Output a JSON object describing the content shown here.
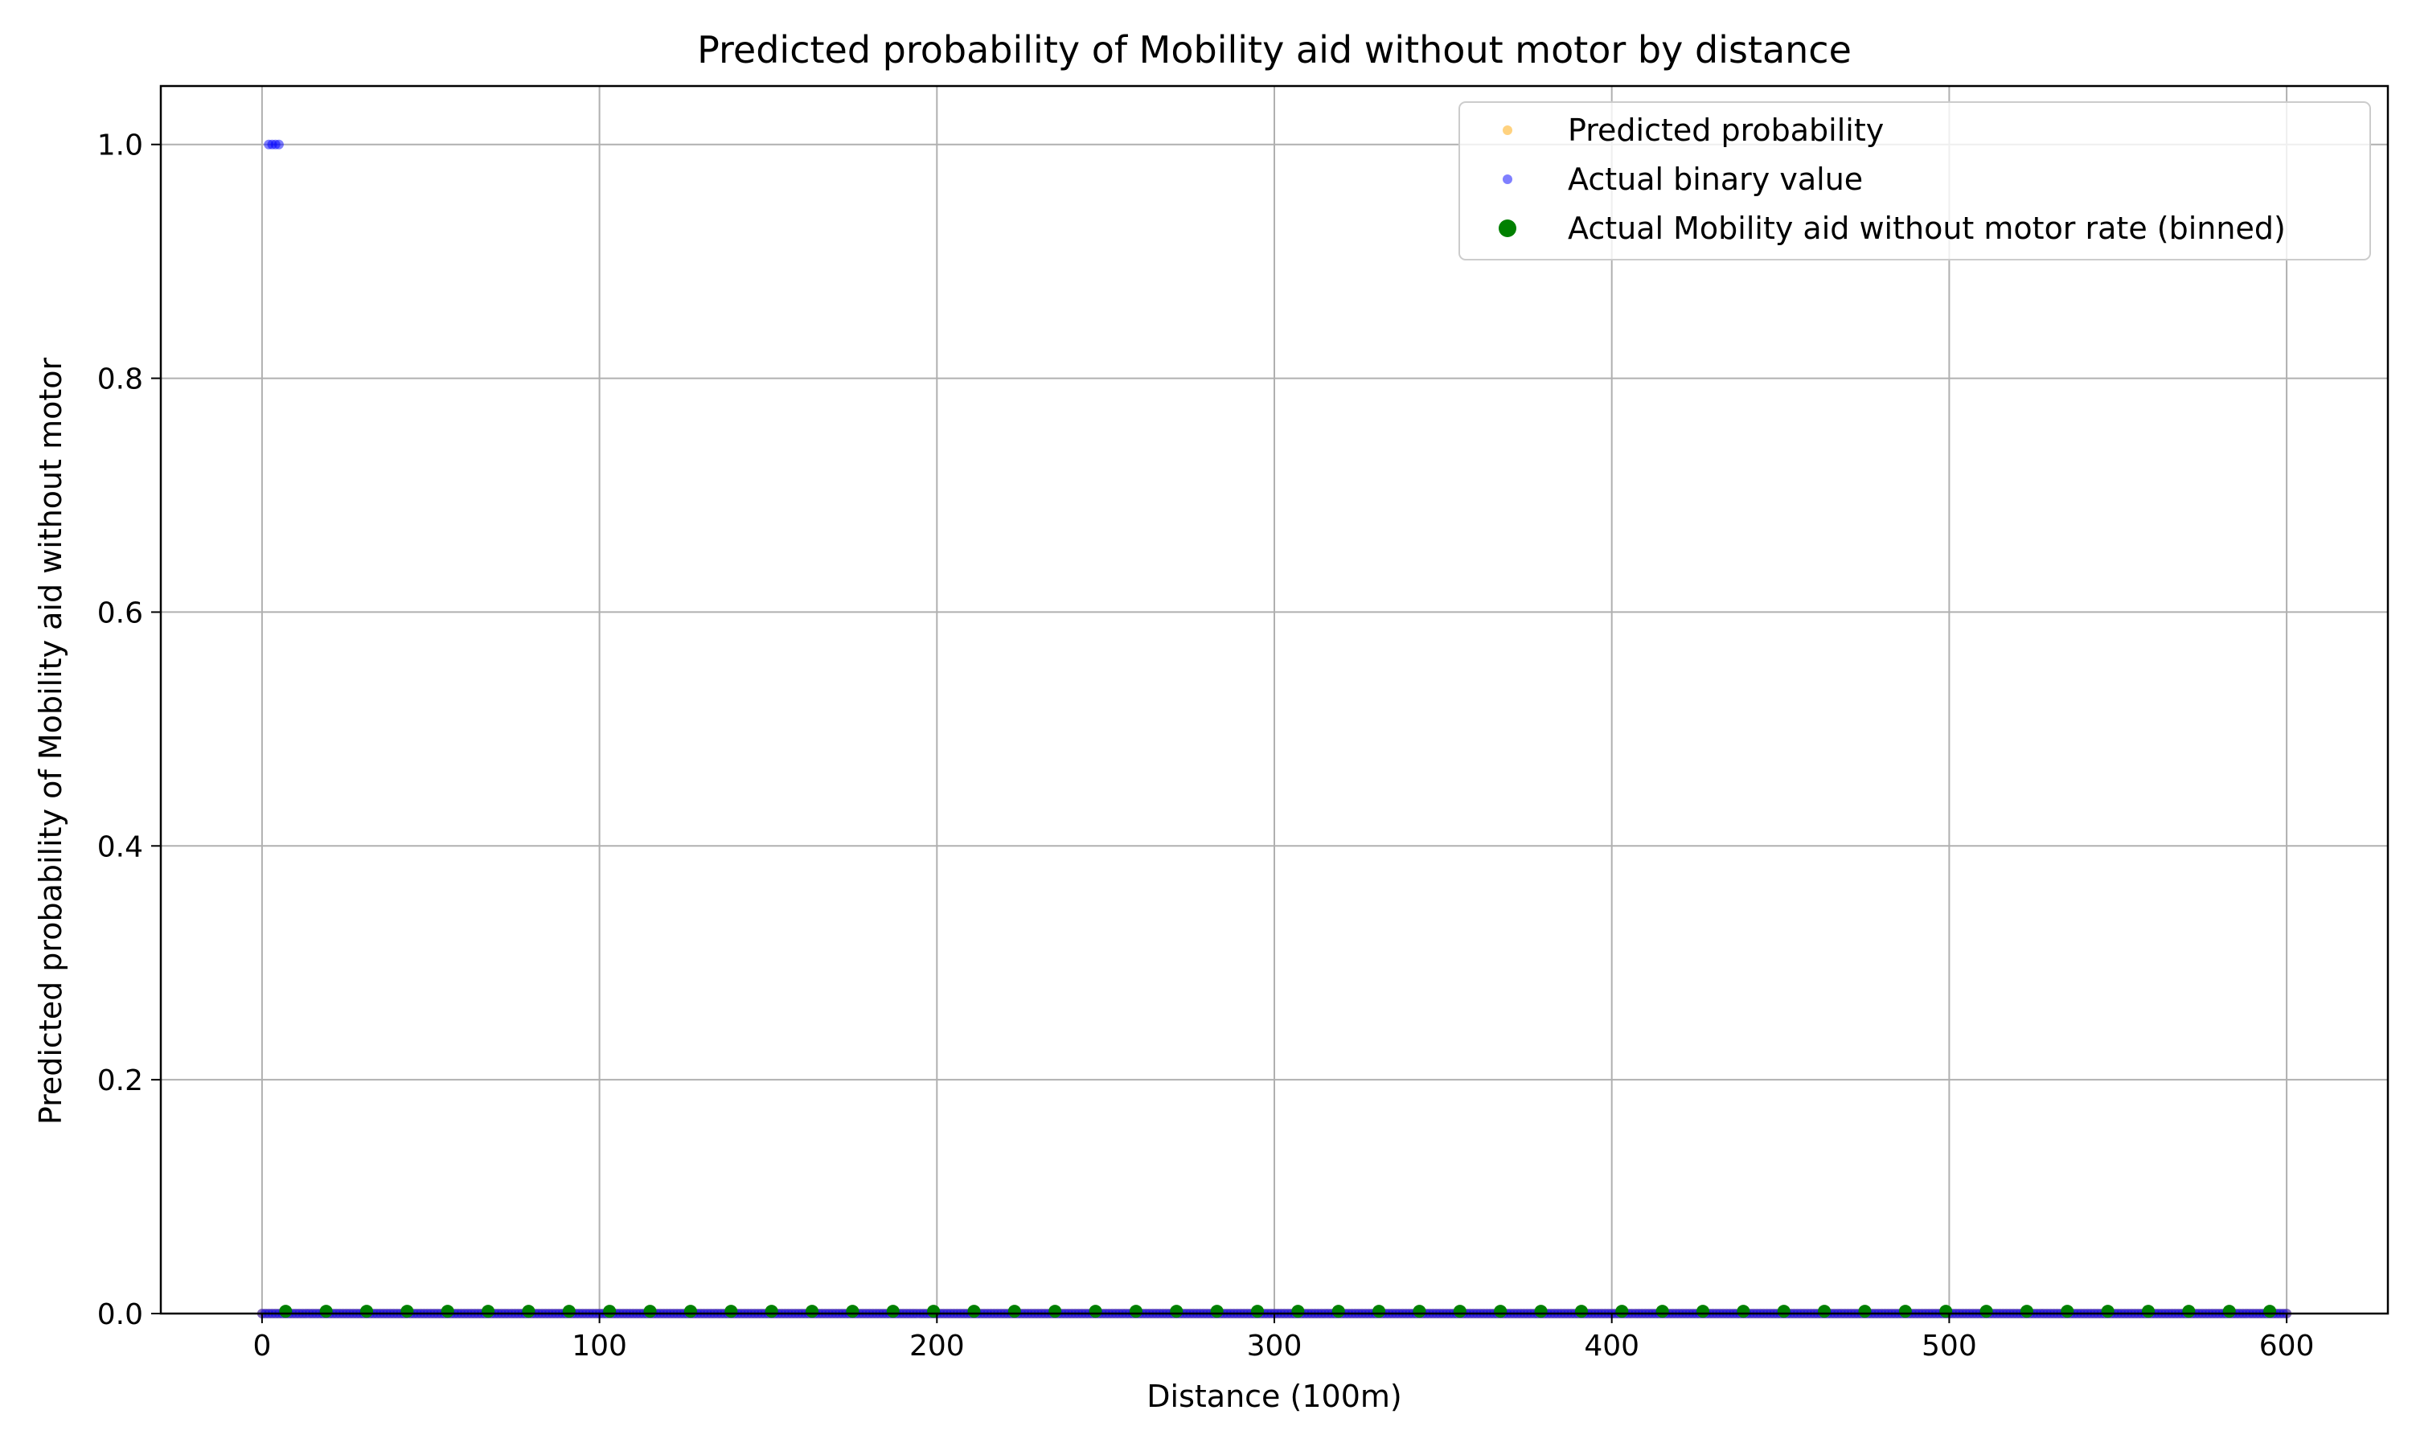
{
  "chart_data": {
    "type": "scatter",
    "title": "Predicted probability of Mobility aid without motor by distance",
    "xlabel": "Distance (100m)",
    "ylabel": "Predicted probability of Mobility aid without motor",
    "xlim": [
      -30,
      630
    ],
    "ylim": [
      0.0,
      1.05
    ],
    "xticks": [
      0,
      100,
      200,
      300,
      400,
      500,
      600
    ],
    "xtick_labels": [
      "0",
      "100",
      "200",
      "300",
      "400",
      "500",
      "600"
    ],
    "yticks": [
      0.0,
      0.2,
      0.4,
      0.6,
      0.8,
      1.0
    ],
    "ytick_labels": [
      "0.0",
      "0.2",
      "0.4",
      "0.6",
      "0.8",
      "1.0"
    ],
    "grid": true,
    "legend_position": "top-right",
    "series": [
      {
        "name": "Predicted probability",
        "color": "#ffa500",
        "marker": "small-circle",
        "x_range": [
          0,
          600
        ],
        "x_step": 1,
        "y": 0.0
      },
      {
        "name": "Actual binary value",
        "color": "#0000ff",
        "marker": "small-circle",
        "x_range": [
          0,
          600
        ],
        "x_step": 1,
        "y": 0.0,
        "extra_points": [
          {
            "x": 2,
            "y": 1.0
          },
          {
            "x": 3,
            "y": 1.0
          },
          {
            "x": 4,
            "y": 1.0
          },
          {
            "x": 5,
            "y": 1.0
          }
        ]
      },
      {
        "name": "Actual Mobility aid without motor rate (binned)",
        "color": "#008000",
        "marker": "circle",
        "x": [
          7,
          19,
          31,
          43,
          55,
          67,
          79,
          91,
          103,
          115,
          127,
          139,
          151,
          163,
          175,
          187,
          199,
          211,
          223,
          235,
          247,
          259,
          271,
          283,
          295,
          307,
          319,
          331,
          343,
          355,
          367,
          379,
          391,
          403,
          415,
          427,
          439,
          451,
          463,
          475,
          487,
          499,
          511,
          523,
          535,
          547,
          559,
          571,
          583,
          595
        ],
        "y": [
          0.002,
          0.002,
          0.002,
          0.002,
          0.002,
          0.002,
          0.002,
          0.002,
          0.002,
          0.002,
          0.002,
          0.002,
          0.002,
          0.002,
          0.002,
          0.002,
          0.002,
          0.002,
          0.002,
          0.002,
          0.002,
          0.002,
          0.002,
          0.002,
          0.002,
          0.002,
          0.002,
          0.002,
          0.002,
          0.002,
          0.002,
          0.002,
          0.002,
          0.002,
          0.002,
          0.002,
          0.002,
          0.002,
          0.002,
          0.002,
          0.002,
          0.002,
          0.002,
          0.002,
          0.002,
          0.002,
          0.002,
          0.002,
          0.002,
          0.002
        ]
      }
    ]
  }
}
